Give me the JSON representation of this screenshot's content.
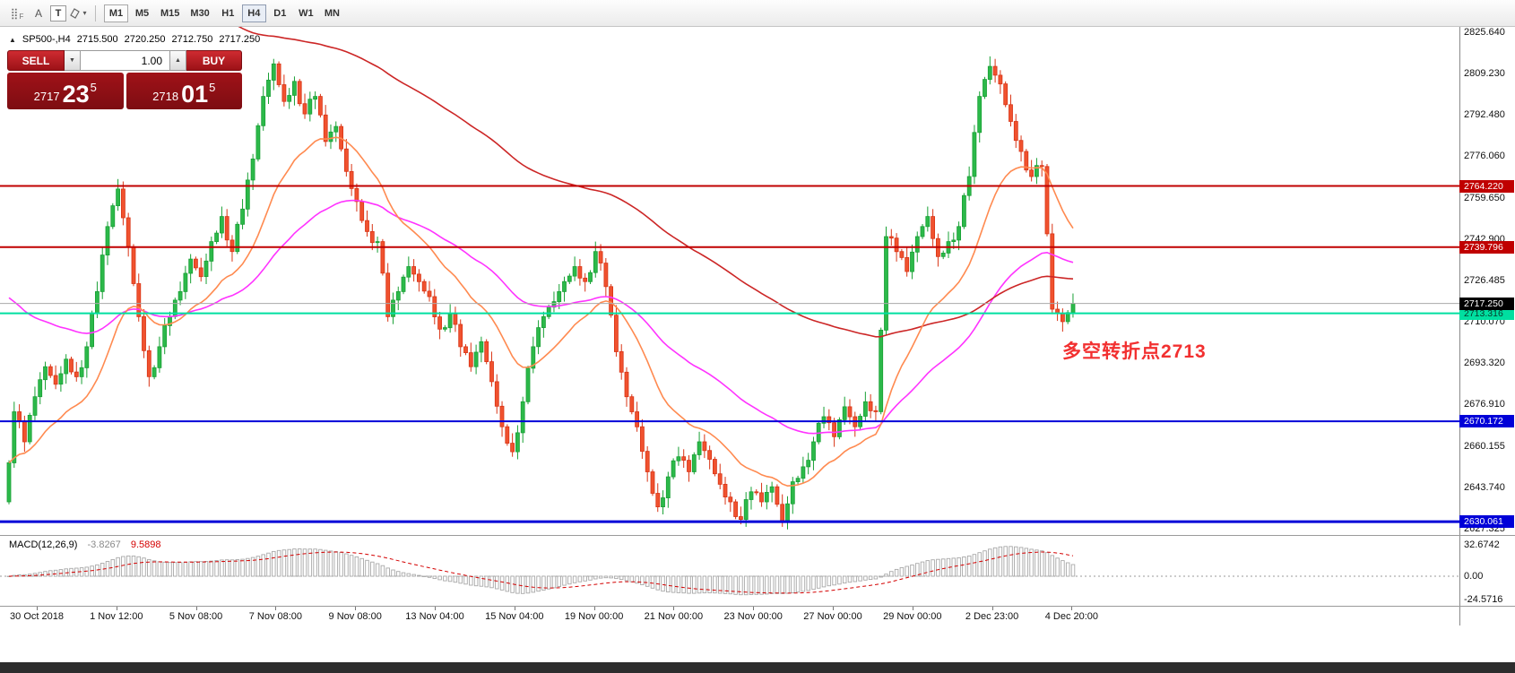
{
  "toolbar": {
    "tool_a_label": "A",
    "tool_t_label": "T",
    "timeframes": [
      "M1",
      "M5",
      "M15",
      "M30",
      "H1",
      "H4",
      "D1",
      "W1",
      "MN"
    ],
    "active_timeframe": "H4",
    "boxed_timeframe": "M1"
  },
  "icons": {
    "grid_glyph": "⣿",
    "grid_sub": "F",
    "dropdown_down": "▼",
    "dropdown_up": "▲",
    "expander": "▲",
    "shapes_dropdown": "▾"
  },
  "chart": {
    "symbol_period": "SP500-,H4",
    "open": "2715.500",
    "high": "2720.250",
    "low": "2712.750",
    "close": "2717.250"
  },
  "trade_panel": {
    "sell_label": "SELL",
    "buy_label": "BUY",
    "volume": "1.00",
    "bid": {
      "prefix": "2717",
      "big": "23",
      "sup": "5"
    },
    "ask": {
      "prefix": "2718",
      "big": "01",
      "sup": "5"
    }
  },
  "annotation": {
    "text": "多空转折点2713",
    "color": "#f23030"
  },
  "current_price": {
    "label": "2717.250",
    "price": 2717.25
  },
  "levels": [
    {
      "price": 2764.22,
      "label": "2764.220",
      "line": "#c00000",
      "badge_bg": "#c00000",
      "badge_fg": "#ffffff",
      "width": 2
    },
    {
      "price": 2739.796,
      "label": "2739.796",
      "line": "#c00000",
      "badge_bg": "#c00000",
      "badge_fg": "#ffffff",
      "width": 2
    },
    {
      "price": 2713.316,
      "label": "2713.316",
      "line": "#00dfa0",
      "badge_bg": "#00dfa0",
      "badge_fg": "#073a2b",
      "width": 2
    },
    {
      "price": 2670.172,
      "label": "2670.172",
      "line": "#0000d8",
      "badge_bg": "#0000d8",
      "badge_fg": "#ffffff",
      "width": 2
    },
    {
      "price": 2630.061,
      "label": "2630.061",
      "line": "#0000d8",
      "badge_bg": "#0000d8",
      "badge_fg": "#ffffff",
      "width": 3
    }
  ],
  "price_axis": {
    "labels": [
      "2825.640",
      "2809.230",
      "2792.480",
      "2776.060",
      "2759.650",
      "2742.900",
      "2726.485",
      "2710.070",
      "2693.320",
      "2676.910",
      "2660.155",
      "2643.740",
      "2627.325"
    ]
  },
  "macd": {
    "name": "MACD(12,26,9)",
    "main_value": "-3.8267",
    "signal_value": "9.5898",
    "axis_labels": [
      "32.6742",
      "0.00",
      "-24.5716"
    ]
  },
  "time_axis": {
    "labels": [
      "30 Oct 2018",
      "1 Nov 12:00",
      "5 Nov 08:00",
      "7 Nov 08:00",
      "9 Nov 08:00",
      "13 Nov 04:00",
      "15 Nov 04:00",
      "19 Nov 00:00",
      "21 Nov 00:00",
      "23 Nov 00:00",
      "27 Nov 00:00",
      "29 Nov 00:00",
      "2 Dec 23:00",
      "4 Dec 20:00"
    ]
  },
  "chart_data": {
    "type": "candlestick",
    "symbol": "SP500-",
    "timeframe": "H4",
    "axis_top_price": 2825.64,
    "axis_bottom_price": 2627.325,
    "current_bar": {
      "open": 2715.5,
      "high": 2720.25,
      "low": 2712.75,
      "close": 2717.25
    },
    "path": [
      2638,
      2674,
      2662,
      2680,
      2692,
      2685,
      2695,
      2688,
      2700,
      2722,
      2748,
      2763,
      2740,
      2712,
      2688,
      2700,
      2712,
      2722,
      2735,
      2728,
      2742,
      2752,
      2738,
      2755,
      2775,
      2800,
      2813,
      2798,
      2806,
      2793,
      2800,
      2782,
      2788,
      2770,
      2758,
      2746,
      2742,
      2712,
      2722,
      2732,
      2726,
      2720,
      2707,
      2713,
      2700,
      2692,
      2702,
      2686,
      2668,
      2658,
      2678,
      2700,
      2712,
      2718,
      2726,
      2732,
      2726,
      2738,
      2724,
      2698,
      2680,
      2668,
      2650,
      2636,
      2648,
      2656,
      2650,
      2662,
      2655,
      2645,
      2638,
      2631,
      2642,
      2638,
      2644,
      2630,
      2646,
      2652,
      2662,
      2672,
      2664,
      2676,
      2668,
      2678,
      2674,
      2744,
      2738,
      2730,
      2744,
      2752,
      2736,
      2742,
      2748,
      2768,
      2800,
      2812,
      2805,
      2790,
      2778,
      2768,
      2772,
      2715,
      2710,
      2717.25
    ],
    "moving_averages": [
      {
        "name": "ma-slow",
        "period": 55,
        "color": "#ff33ff",
        "seed": 2722
      },
      {
        "name": "ma-long",
        "period": 130,
        "color": "#cc2626",
        "seed": 2940
      },
      {
        "name": "ma-fast",
        "period": 20,
        "color": "#ff8a50",
        "seed": null
      }
    ],
    "macd_params": [
      12,
      26,
      9
    ],
    "up_color": "#2cb94a",
    "down_color": "#f0522f"
  }
}
